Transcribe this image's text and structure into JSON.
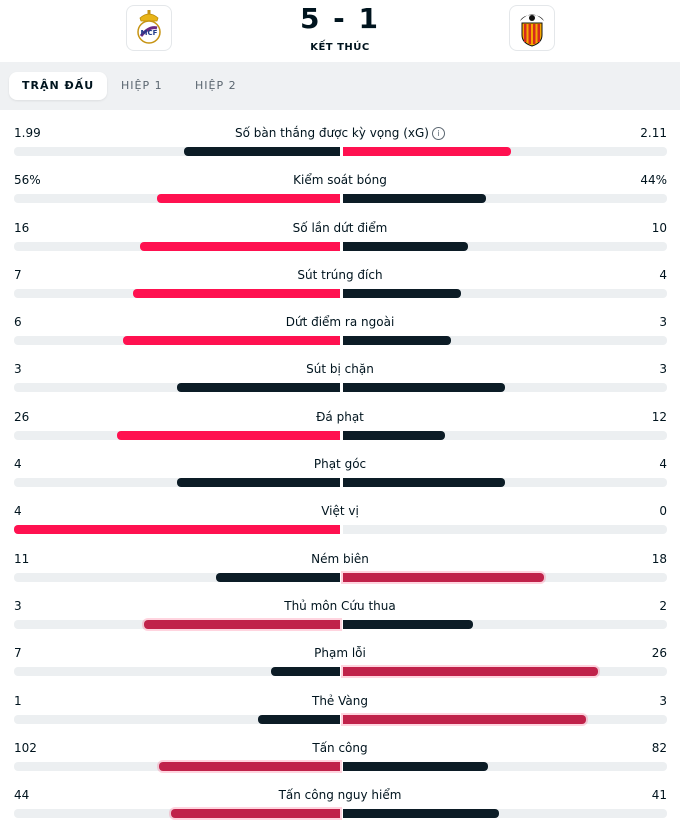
{
  "match": {
    "score": "5 - 1",
    "status": "KẾT THÚC",
    "home_crest": "real-madrid-crest",
    "away_crest": "valencia-crest"
  },
  "tabs": [
    {
      "label": "TRẬN ĐẤU",
      "active": true
    },
    {
      "label": "HIỆP 1",
      "active": false
    },
    {
      "label": "HIỆP 2",
      "active": false
    }
  ],
  "colors": {
    "pink": "#ff1150",
    "navy": "#0c1c26",
    "crimson": "#c0224a",
    "track": "#eceff1",
    "tabbar": "#eff1f3"
  },
  "stats": [
    {
      "label": "Số bàn thắng được kỳ vọng (xG)",
      "home": "1.99",
      "away": "2.11",
      "home_frac": 0.48,
      "away_frac": 0.52,
      "home_color": "navy",
      "away_color": "pink",
      "info_icon": true
    },
    {
      "label": "Kiểm soát bóng",
      "home": "56%",
      "away": "44%",
      "home_frac": 0.56,
      "away_frac": 0.44,
      "home_color": "pink",
      "away_color": "navy"
    },
    {
      "label": "Số lần dứt điểm",
      "home": "16",
      "away": "10",
      "home_frac": 0.615,
      "away_frac": 0.385,
      "home_color": "pink",
      "away_color": "navy"
    },
    {
      "label": "Sút trúng đích",
      "home": "7",
      "away": "4",
      "home_frac": 0.636,
      "away_frac": 0.364,
      "home_color": "pink",
      "away_color": "navy"
    },
    {
      "label": "Dứt điểm ra ngoài",
      "home": "6",
      "away": "3",
      "home_frac": 0.667,
      "away_frac": 0.333,
      "home_color": "pink",
      "away_color": "navy"
    },
    {
      "label": "Sút bị chặn",
      "home": "3",
      "away": "3",
      "home_frac": 0.5,
      "away_frac": 0.5,
      "home_color": "navy",
      "away_color": "navy"
    },
    {
      "label": "Đá phạt",
      "home": "26",
      "away": "12",
      "home_frac": 0.684,
      "away_frac": 0.316,
      "home_color": "pink",
      "away_color": "navy"
    },
    {
      "label": "Phạt góc",
      "home": "4",
      "away": "4",
      "home_frac": 0.5,
      "away_frac": 0.5,
      "home_color": "navy",
      "away_color": "navy"
    },
    {
      "label": "Việt vị",
      "home": "4",
      "away": "0",
      "home_frac": 1.0,
      "away_frac": 0.0,
      "home_color": "pink",
      "away_color": "navy"
    },
    {
      "label": "Ném biên",
      "home": "11",
      "away": "18",
      "home_frac": 0.379,
      "away_frac": 0.621,
      "home_color": "navy",
      "away_color": "crimson"
    },
    {
      "label": "Thủ môn Cứu thua",
      "home": "3",
      "away": "2",
      "home_frac": 0.6,
      "away_frac": 0.4,
      "home_color": "crimson",
      "away_color": "navy"
    },
    {
      "label": "Phạm lỗi",
      "home": "7",
      "away": "26",
      "home_frac": 0.212,
      "away_frac": 0.788,
      "home_color": "navy",
      "away_color": "crimson"
    },
    {
      "label": "Thẻ Vàng",
      "home": "1",
      "away": "3",
      "home_frac": 0.25,
      "away_frac": 0.75,
      "home_color": "navy",
      "away_color": "crimson"
    },
    {
      "label": "Tấn công",
      "home": "102",
      "away": "82",
      "home_frac": 0.554,
      "away_frac": 0.446,
      "home_color": "crimson",
      "away_color": "navy"
    },
    {
      "label": "Tấn công nguy hiểm",
      "home": "44",
      "away": "41",
      "home_frac": 0.518,
      "away_frac": 0.482,
      "home_color": "crimson",
      "away_color": "navy"
    }
  ]
}
